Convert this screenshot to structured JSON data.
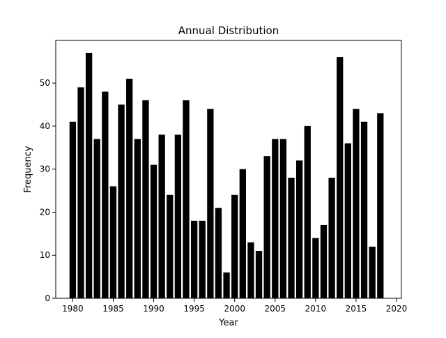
{
  "chart_data": {
    "type": "bar",
    "title": "Annual Distribution",
    "xlabel": "Year",
    "ylabel": "Frequency",
    "x": [
      1980,
      1981,
      1982,
      1983,
      1984,
      1985,
      1986,
      1987,
      1988,
      1989,
      1990,
      1991,
      1992,
      1993,
      1994,
      1995,
      1996,
      1997,
      1998,
      1999,
      2000,
      2001,
      2002,
      2003,
      2004,
      2005,
      2006,
      2007,
      2008,
      2009,
      2010,
      2011,
      2012,
      2013,
      2014,
      2015,
      2016,
      2017,
      2018
    ],
    "values": [
      41,
      49,
      57,
      37,
      48,
      26,
      45,
      51,
      37,
      46,
      31,
      38,
      24,
      38,
      46,
      18,
      18,
      44,
      21,
      6,
      24,
      30,
      13,
      11,
      33,
      37,
      37,
      28,
      32,
      40,
      14,
      17,
      28,
      56,
      36,
      44,
      41,
      12,
      43
    ],
    "xlim": [
      1977.9,
      2020.6
    ],
    "ylim": [
      0,
      59.9
    ],
    "xticks": [
      "1980",
      "1985",
      "1990",
      "1995",
      "2000",
      "2005",
      "2010",
      "2015",
      "2020"
    ],
    "yticks": [
      "0",
      "10",
      "20",
      "30",
      "40",
      "50"
    ],
    "bar_color": "#000000",
    "grid": false,
    "legend": "none"
  }
}
